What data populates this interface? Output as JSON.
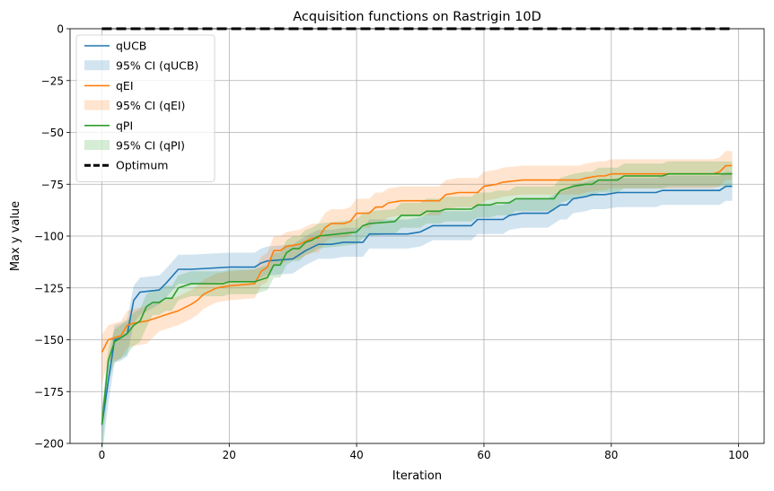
{
  "chart_data": {
    "type": "line",
    "title": "Acquisition functions on Rastrigin 10D",
    "xlabel": "Iteration",
    "ylabel": "Max y value",
    "xlim": [
      -5,
      104
    ],
    "ylim": [
      -200,
      0
    ],
    "xticks": [
      0,
      20,
      40,
      60,
      80,
      100
    ],
    "yticks": [
      -200,
      -175,
      -150,
      -125,
      -100,
      -75,
      -50,
      -25,
      0
    ],
    "grid": true,
    "legend_position": "upper left",
    "legend": [
      {
        "label": "qUCB",
        "kind": "line",
        "color": "#1f77b4"
      },
      {
        "label": "95% CI (qUCB)",
        "kind": "band",
        "color": "#1f77b4"
      },
      {
        "label": "qEI",
        "kind": "line",
        "color": "#ff7f0e"
      },
      {
        "label": "95% CI (qEI)",
        "kind": "band",
        "color": "#ff7f0e"
      },
      {
        "label": "qPI",
        "kind": "line",
        "color": "#2ca02c"
      },
      {
        "label": "95% CI (qPI)",
        "kind": "band",
        "color": "#2ca02c"
      },
      {
        "label": "Optimum",
        "kind": "dashed",
        "color": "#000000"
      }
    ],
    "series": [
      {
        "name": "qUCB",
        "color": "#1f77b4",
        "band_spread": 7,
        "points": [
          [
            0,
            -191
          ],
          [
            1,
            -170
          ],
          [
            2,
            -150
          ],
          [
            3,
            -149
          ],
          [
            4,
            -147
          ],
          [
            5,
            -131
          ],
          [
            6,
            -127
          ],
          [
            9,
            -126
          ],
          [
            10,
            -123
          ],
          [
            12,
            -116
          ],
          [
            14,
            -116
          ],
          [
            20,
            -115
          ],
          [
            24,
            -115
          ],
          [
            25,
            -113
          ],
          [
            26,
            -112
          ],
          [
            30,
            -111
          ],
          [
            32,
            -107
          ],
          [
            34,
            -104
          ],
          [
            36,
            -104
          ],
          [
            38,
            -103
          ],
          [
            41,
            -103
          ],
          [
            42,
            -99
          ],
          [
            48,
            -99
          ],
          [
            50,
            -98
          ],
          [
            52,
            -95
          ],
          [
            58,
            -95
          ],
          [
            59,
            -92
          ],
          [
            63,
            -92
          ],
          [
            64,
            -90
          ],
          [
            66,
            -89
          ],
          [
            70,
            -89
          ],
          [
            71,
            -87
          ],
          [
            72,
            -85
          ],
          [
            73,
            -85
          ],
          [
            74,
            -82
          ],
          [
            76,
            -81
          ],
          [
            77,
            -80
          ],
          [
            79,
            -80
          ],
          [
            81,
            -79
          ],
          [
            87,
            -79
          ],
          [
            88,
            -78
          ],
          [
            97,
            -78
          ],
          [
            98,
            -76
          ],
          [
            99,
            -76
          ]
        ]
      },
      {
        "name": "qEI",
        "color": "#ff7f0e",
        "band_spread": 7,
        "points": [
          [
            0,
            -156
          ],
          [
            1,
            -150
          ],
          [
            2,
            -149
          ],
          [
            3,
            -148
          ],
          [
            4,
            -143
          ],
          [
            5,
            -142
          ],
          [
            7,
            -141
          ],
          [
            9,
            -139
          ],
          [
            10,
            -138
          ],
          [
            12,
            -136
          ],
          [
            14,
            -133
          ],
          [
            15,
            -131
          ],
          [
            16,
            -128
          ],
          [
            18,
            -125
          ],
          [
            20,
            -124
          ],
          [
            24,
            -123
          ],
          [
            25,
            -117
          ],
          [
            26,
            -115
          ],
          [
            27,
            -107
          ],
          [
            28,
            -107
          ],
          [
            29,
            -105
          ],
          [
            31,
            -104
          ],
          [
            33,
            -101
          ],
          [
            34,
            -101
          ],
          [
            35,
            -96
          ],
          [
            36,
            -94
          ],
          [
            38,
            -94
          ],
          [
            39,
            -93
          ],
          [
            40,
            -89
          ],
          [
            42,
            -89
          ],
          [
            43,
            -86
          ],
          [
            44,
            -86
          ],
          [
            45,
            -84
          ],
          [
            47,
            -83
          ],
          [
            53,
            -83
          ],
          [
            54,
            -80
          ],
          [
            56,
            -79
          ],
          [
            59,
            -79
          ],
          [
            60,
            -76
          ],
          [
            62,
            -75
          ],
          [
            63,
            -74
          ],
          [
            66,
            -73
          ],
          [
            75,
            -73
          ],
          [
            76,
            -72
          ],
          [
            78,
            -71
          ],
          [
            79,
            -71
          ],
          [
            80,
            -70
          ],
          [
            96,
            -70
          ],
          [
            97,
            -69
          ],
          [
            98,
            -66
          ],
          [
            99,
            -66
          ]
        ]
      },
      {
        "name": "qPI",
        "color": "#2ca02c",
        "band_spread": 6,
        "points": [
          [
            0,
            -191
          ],
          [
            1,
            -160
          ],
          [
            2,
            -151
          ],
          [
            3,
            -149
          ],
          [
            4,
            -147
          ],
          [
            5,
            -143
          ],
          [
            6,
            -141
          ],
          [
            7,
            -134
          ],
          [
            8,
            -132
          ],
          [
            9,
            -132
          ],
          [
            10,
            -130
          ],
          [
            11,
            -130
          ],
          [
            12,
            -125
          ],
          [
            13,
            -124
          ],
          [
            14,
            -123
          ],
          [
            19,
            -123
          ],
          [
            20,
            -122
          ],
          [
            24,
            -122
          ],
          [
            25,
            -121
          ],
          [
            26,
            -120
          ],
          [
            27,
            -114
          ],
          [
            28,
            -114
          ],
          [
            29,
            -108
          ],
          [
            30,
            -106
          ],
          [
            31,
            -106
          ],
          [
            32,
            -103
          ],
          [
            33,
            -102
          ],
          [
            34,
            -100
          ],
          [
            37,
            -99
          ],
          [
            40,
            -98
          ],
          [
            41,
            -95
          ],
          [
            42,
            -94
          ],
          [
            46,
            -93
          ],
          [
            47,
            -90
          ],
          [
            50,
            -90
          ],
          [
            51,
            -88
          ],
          [
            53,
            -88
          ],
          [
            54,
            -87
          ],
          [
            58,
            -87
          ],
          [
            59,
            -85
          ],
          [
            61,
            -85
          ],
          [
            62,
            -84
          ],
          [
            64,
            -84
          ],
          [
            65,
            -82
          ],
          [
            71,
            -82
          ],
          [
            72,
            -78
          ],
          [
            73,
            -77
          ],
          [
            74,
            -76
          ],
          [
            76,
            -75
          ],
          [
            77,
            -75
          ],
          [
            78,
            -73
          ],
          [
            81,
            -73
          ],
          [
            82,
            -71
          ],
          [
            88,
            -71
          ],
          [
            89,
            -70
          ],
          [
            99,
            -70
          ]
        ]
      },
      {
        "name": "Optimum",
        "color": "#000000",
        "style": "dashed",
        "points": [
          [
            0,
            0
          ],
          [
            99,
            0
          ]
        ]
      }
    ]
  }
}
